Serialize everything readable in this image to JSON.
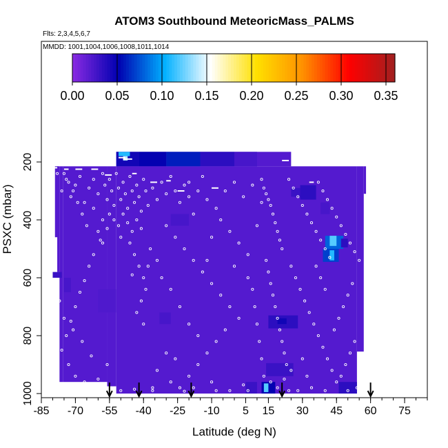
{
  "chart_data": {
    "type": "heatmap",
    "title": "ATOM3 Southbound MeteoricMass_PALMS",
    "subtitle_flights": "Flts: 2,3,4,5,6,7",
    "subtitle_dates": "MMDD: 1001,1004,1006,1008,1011,1014",
    "xlabel": "Latitude (deg N)",
    "ylabel": "PSXC (mbar)",
    "xlim": [
      -85,
      85
    ],
    "ylim": [
      1000,
      0
    ],
    "x_ticks": [
      -85,
      -70,
      -55,
      -40,
      -25,
      -10,
      5,
      15,
      30,
      45,
      60,
      75
    ],
    "y_ticks": [
      200,
      400,
      600,
      800,
      1000
    ],
    "colorbar": {
      "range": [
        0,
        0.36
      ],
      "ticks": [
        "0.00",
        "0.05",
        "0.10",
        "0.15",
        "0.20",
        "0.25",
        "0.30",
        "0.35"
      ],
      "tick_values": [
        0,
        0.05,
        0.1,
        0.15,
        0.2,
        0.25,
        0.3,
        0.35
      ],
      "colors": [
        "#8a2be2",
        "#0000b0",
        "#00b0ff",
        "#ffffff",
        "#ffe000",
        "#ff9000",
        "#ff0000",
        "#a02020"
      ]
    },
    "background_value": 0.02,
    "domain": [
      {
        "x0": -79,
        "x1": -77.5,
        "p0": 215,
        "p1": 460
      },
      {
        "x0": -78,
        "x1": -77,
        "p0": 215,
        "p1": 580
      },
      {
        "x0": -77,
        "x1": -75.5,
        "p0": 215,
        "p1": 960
      },
      {
        "x0": -75.5,
        "x1": -56,
        "p0": 215,
        "p1": 960
      },
      {
        "x0": -56,
        "x1": -52,
        "p0": 215,
        "p1": 975
      },
      {
        "x0": -52,
        "x1": 54,
        "p0": 215,
        "p1": 1000
      },
      {
        "x0": 54,
        "x1": 57,
        "p0": 215,
        "p1": 855
      },
      {
        "x0": 57,
        "x1": 58,
        "p0": 215,
        "p1": 310
      },
      {
        "x0": -52,
        "x1": 25,
        "p0": 165,
        "p1": 215
      }
    ],
    "patches": [
      {
        "x0": -52,
        "x1": -42,
        "p0": 165,
        "p1": 215,
        "v": 0.045
      },
      {
        "x0": -51,
        "x1": -46,
        "p0": 165,
        "p1": 180,
        "v": 0.11
      },
      {
        "x0": -49,
        "x1": -47,
        "p0": 180,
        "p1": 195,
        "v": 0.14
      },
      {
        "x0": -42,
        "x1": -30,
        "p0": 165,
        "p1": 215,
        "v": 0.05
      },
      {
        "x0": -30,
        "x1": -15,
        "p0": 165,
        "p1": 215,
        "v": 0.06
      },
      {
        "x0": -15,
        "x1": 0,
        "p0": 165,
        "p1": 215,
        "v": 0.035
      },
      {
        "x0": 0,
        "x1": 10,
        "p0": 165,
        "p1": 215,
        "v": 0.025
      },
      {
        "x0": 29,
        "x1": 36,
        "p0": 280,
        "p1": 330,
        "v": 0.035
      },
      {
        "x0": 25,
        "x1": 29,
        "p0": 290,
        "p1": 320,
        "v": 0.03
      },
      {
        "x0": 38,
        "x1": 42,
        "p0": 340,
        "p1": 380,
        "v": 0.025
      },
      {
        "x0": 40,
        "x1": 48,
        "p0": 455,
        "p1": 500,
        "v": 0.08
      },
      {
        "x0": 42,
        "x1": 45,
        "p0": 455,
        "p1": 490,
        "v": 0.12
      },
      {
        "x0": 39,
        "x1": 46,
        "p0": 500,
        "p1": 545,
        "v": 0.07
      },
      {
        "x0": 42,
        "x1": 44,
        "p0": 505,
        "p1": 540,
        "v": 0.11
      },
      {
        "x0": 47,
        "x1": 50,
        "p0": 465,
        "p1": 495,
        "v": 0.035
      },
      {
        "x0": 15,
        "x1": 28,
        "p0": 730,
        "p1": 775,
        "v": 0.035
      },
      {
        "x0": 19,
        "x1": 23,
        "p0": 740,
        "p1": 760,
        "v": 0.045
      },
      {
        "x0": 14,
        "x1": 26,
        "p0": 895,
        "p1": 940,
        "v": 0.03
      },
      {
        "x0": 12,
        "x1": 18,
        "p0": 960,
        "p1": 1000,
        "v": 0.05
      },
      {
        "x0": 13,
        "x1": 15,
        "p0": 965,
        "p1": 995,
        "v": 0.12
      },
      {
        "x0": 5,
        "x1": 10,
        "p0": 960,
        "p1": 1000,
        "v": 0.03
      },
      {
        "x0": 46,
        "x1": 54,
        "p0": 960,
        "p1": 1000,
        "v": 0.035
      },
      {
        "x0": -80,
        "x1": -76,
        "p0": 580,
        "p1": 600,
        "v": 0.03
      },
      {
        "x0": -75,
        "x1": -72,
        "p0": 600,
        "p1": 650,
        "v": 0.025
      },
      {
        "x0": -33,
        "x1": -28,
        "p0": 720,
        "p1": 760,
        "v": 0.025
      },
      {
        "x0": -28,
        "x1": -20,
        "p0": 380,
        "p1": 420,
        "v": 0.025
      },
      {
        "x0": -60,
        "x1": -52,
        "p0": 640,
        "p1": 720,
        "v": 0.022
      }
    ],
    "streaks": [
      {
        "x0": -51,
        "x1": -48,
        "p": 185
      },
      {
        "x0": -49,
        "x1": -45,
        "p": 190
      },
      {
        "x0": 21,
        "x1": 24,
        "p": 195
      },
      {
        "x0": -75,
        "x1": -73,
        "p": 225
      },
      {
        "x0": -70,
        "x1": -67,
        "p": 225
      },
      {
        "x0": -63,
        "x1": -60,
        "p": 225
      },
      {
        "x0": -57,
        "x1": -54,
        "p": 245
      },
      {
        "x0": -45,
        "x1": -43,
        "p": 240
      },
      {
        "x0": -30,
        "x1": -28,
        "p": 265
      },
      {
        "x0": -37,
        "x1": -34,
        "p": 270
      },
      {
        "x0": -10,
        "x1": -7,
        "p": 290
      },
      {
        "x0": -25,
        "x1": -22,
        "p": 300
      },
      {
        "x0": 33,
        "x1": 35,
        "p": 270
      },
      {
        "x0": -80,
        "x1": -78,
        "p": 220
      }
    ],
    "points": [
      [
        -78,
        240
      ],
      [
        -76,
        300
      ],
      [
        -74,
        260
      ],
      [
        -72,
        320
      ],
      [
        -70,
        280
      ],
      [
        -68,
        250
      ],
      [
        -66,
        340
      ],
      [
        -64,
        290
      ],
      [
        -62,
        260
      ],
      [
        -60,
        310
      ],
      [
        -58,
        240
      ],
      [
        -57,
        280
      ],
      [
        -56,
        330
      ],
      [
        -55,
        260
      ],
      [
        -54,
        300
      ],
      [
        -53,
        350
      ],
      [
        -52,
        240
      ],
      [
        -51,
        290
      ],
      [
        -50,
        330
      ],
      [
        -49,
        270
      ],
      [
        -48,
        310
      ],
      [
        -47,
        360
      ],
      [
        -46,
        250
      ],
      [
        -45,
        300
      ],
      [
        -44,
        340
      ],
      [
        -43,
        280
      ],
      [
        -42,
        320
      ],
      [
        -41,
        370
      ],
      [
        -40,
        260
      ],
      [
        -39,
        300
      ],
      [
        -38,
        350
      ],
      [
        -36,
        290
      ],
      [
        -34,
        330
      ],
      [
        -32,
        270
      ],
      [
        -30,
        310
      ],
      [
        -28,
        250
      ],
      [
        -26,
        300
      ],
      [
        -24,
        340
      ],
      [
        -22,
        280
      ],
      [
        -20,
        320
      ],
      [
        -55,
        380
      ],
      [
        -53,
        400
      ],
      [
        -51,
        420
      ],
      [
        -49,
        380
      ],
      [
        -47,
        410
      ],
      [
        -45,
        440
      ],
      [
        -43,
        400
      ],
      [
        -41,
        430
      ],
      [
        -50,
        460
      ],
      [
        -46,
        480
      ],
      [
        -44,
        520
      ],
      [
        -42,
        560
      ],
      [
        -40,
        600
      ],
      [
        -39,
        640
      ],
      [
        -41,
        680
      ],
      [
        -43,
        720
      ],
      [
        -40,
        760
      ],
      [
        -38,
        560
      ],
      [
        -37,
        500
      ],
      [
        -45,
        590
      ],
      [
        -60,
        440
      ],
      [
        -58,
        480
      ],
      [
        -62,
        520
      ],
      [
        -64,
        560
      ],
      [
        -66,
        610
      ],
      [
        -68,
        650
      ],
      [
        -70,
        700
      ],
      [
        -72,
        750
      ],
      [
        -74,
        800
      ],
      [
        -76,
        850
      ],
      [
        -73,
        900
      ],
      [
        -70,
        940
      ],
      [
        -66,
        960
      ],
      [
        -60,
        950
      ],
      [
        -56,
        900
      ],
      [
        -63,
        870
      ],
      [
        -67,
        820
      ],
      [
        -71,
        780
      ],
      [
        -75,
        740
      ],
      [
        -77,
        680
      ],
      [
        -65,
        420
      ],
      [
        -67,
        380
      ],
      [
        -69,
        340
      ],
      [
        -71,
        300
      ],
      [
        -73,
        270
      ],
      [
        -75,
        240
      ],
      [
        -62,
        360
      ],
      [
        -58,
        400
      ],
      [
        -56,
        430
      ],
      [
        -59,
        470
      ],
      [
        -30,
        420
      ],
      [
        -26,
        460
      ],
      [
        -22,
        500
      ],
      [
        -18,
        540
      ],
      [
        -14,
        580
      ],
      [
        -10,
        620
      ],
      [
        -6,
        660
      ],
      [
        -2,
        700
      ],
      [
        2,
        740
      ],
      [
        -4,
        780
      ],
      [
        -8,
        820
      ],
      [
        -12,
        860
      ],
      [
        -16,
        900
      ],
      [
        -20,
        940
      ],
      [
        -24,
        980
      ],
      [
        -28,
        960
      ],
      [
        -18,
        980
      ],
      [
        -10,
        960
      ],
      [
        -2,
        990
      ],
      [
        4,
        970
      ],
      [
        -34,
        540
      ],
      [
        -32,
        600
      ],
      [
        -28,
        640
      ],
      [
        -24,
        700
      ],
      [
        -20,
        760
      ],
      [
        -16,
        800
      ],
      [
        -30,
        860
      ],
      [
        -34,
        920
      ],
      [
        -36,
        980
      ],
      [
        -26,
        880
      ],
      [
        -20,
        270
      ],
      [
        -16,
        300
      ],
      [
        -12,
        330
      ],
      [
        -8,
        360
      ],
      [
        -4,
        300
      ],
      [
        0,
        270
      ],
      [
        4,
        320
      ],
      [
        8,
        280
      ],
      [
        12,
        340
      ],
      [
        -14,
        250
      ],
      [
        -6,
        400
      ],
      [
        -2,
        440
      ],
      [
        2,
        480
      ],
      [
        6,
        520
      ],
      [
        10,
        420
      ],
      [
        -10,
        460
      ],
      [
        -18,
        380
      ],
      [
        0,
        560
      ],
      [
        6,
        600
      ],
      [
        -12,
        540
      ],
      [
        12,
        260
      ],
      [
        13,
        290
      ],
      [
        14,
        310
      ],
      [
        15,
        330
      ],
      [
        16,
        350
      ],
      [
        17,
        380
      ],
      [
        18,
        410
      ],
      [
        19,
        440
      ],
      [
        20,
        470
      ],
      [
        21,
        500
      ],
      [
        14,
        540
      ],
      [
        15,
        580
      ],
      [
        16,
        620
      ],
      [
        17,
        660
      ],
      [
        18,
        700
      ],
      [
        19,
        740
      ],
      [
        20,
        780
      ],
      [
        21,
        820
      ],
      [
        22,
        860
      ],
      [
        23,
        900
      ],
      [
        13,
        940
      ],
      [
        16,
        960
      ],
      [
        19,
        980
      ],
      [
        22,
        950
      ],
      [
        25,
        920
      ],
      [
        12,
        880
      ],
      [
        11,
        820
      ],
      [
        10,
        760
      ],
      [
        9,
        700
      ],
      [
        8,
        640
      ],
      [
        24,
        260
      ],
      [
        26,
        290
      ],
      [
        28,
        320
      ],
      [
        30,
        350
      ],
      [
        32,
        380
      ],
      [
        34,
        410
      ],
      [
        36,
        440
      ],
      [
        38,
        470
      ],
      [
        40,
        500
      ],
      [
        42,
        530
      ],
      [
        25,
        560
      ],
      [
        27,
        600
      ],
      [
        29,
        640
      ],
      [
        31,
        680
      ],
      [
        33,
        720
      ],
      [
        35,
        760
      ],
      [
        37,
        800
      ],
      [
        39,
        840
      ],
      [
        41,
        880
      ],
      [
        43,
        920
      ],
      [
        45,
        960
      ],
      [
        47,
        940
      ],
      [
        49,
        900
      ],
      [
        51,
        860
      ],
      [
        53,
        820
      ],
      [
        44,
        780
      ],
      [
        46,
        740
      ],
      [
        48,
        700
      ],
      [
        50,
        660
      ],
      [
        52,
        620
      ],
      [
        37,
        270
      ],
      [
        39,
        300
      ],
      [
        41,
        330
      ],
      [
        43,
        360
      ],
      [
        45,
        390
      ],
      [
        47,
        420
      ],
      [
        49,
        450
      ],
      [
        51,
        480
      ],
      [
        53,
        510
      ],
      [
        55,
        540
      ],
      [
        36,
        560
      ],
      [
        38,
        600
      ],
      [
        40,
        640
      ],
      [
        30,
        880
      ],
      [
        32,
        940
      ],
      [
        34,
        980
      ],
      [
        28,
        990
      ],
      [
        40,
        990
      ],
      [
        50,
        990
      ],
      [
        54,
        980
      ],
      [
        -78,
        990
      ],
      [
        -74,
        980
      ],
      [
        -64,
        990
      ],
      [
        -50,
        990
      ],
      [
        -44,
        985
      ],
      [
        -36,
        990
      ],
      [
        -22,
        992
      ],
      [
        -8,
        990
      ],
      [
        6,
        990
      ],
      [
        24,
        990
      ]
    ],
    "arrows": [
      -55,
      -42,
      -19,
      21,
      60
    ]
  }
}
